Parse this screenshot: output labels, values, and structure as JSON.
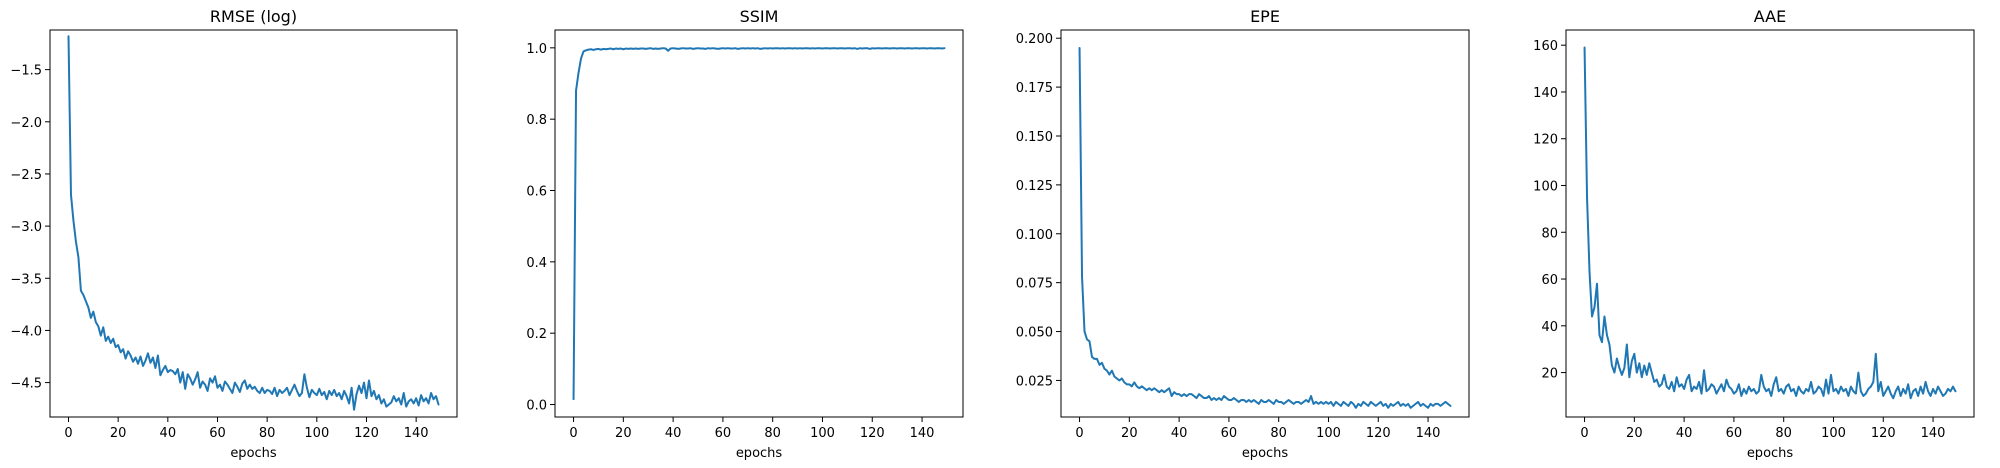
{
  "figure": {
    "line_color": "#1f77b4",
    "axes_color": "#000000",
    "background": "#ffffff"
  },
  "chart_data": [
    {
      "type": "line",
      "title": "RMSE (log)",
      "xlabel": "epochs",
      "ylabel": "",
      "xlim": [
        -7.45,
        156.45
      ],
      "ylim": [
        -4.83,
        -1.12
      ],
      "xticks": [
        0,
        20,
        40,
        60,
        80,
        100,
        120,
        140
      ],
      "yticks": [
        -4.5,
        -4.0,
        -3.5,
        -3.0,
        -2.5,
        -2.0,
        -1.5
      ],
      "ytick_labels": [
        "−4.5",
        "−4.0",
        "−3.5",
        "−3.0",
        "−2.5",
        "−2.0",
        "−1.5"
      ],
      "grid": false,
      "series": [
        {
          "values": [
            -1.18,
            -2.7,
            -2.95,
            -3.15,
            -3.3,
            -3.62,
            -3.66,
            -3.72,
            -3.78,
            -3.88,
            -3.82,
            -3.92,
            -3.96,
            -4.05,
            -3.97,
            -4.1,
            -4.06,
            -4.12,
            -4.08,
            -4.16,
            -4.14,
            -4.21,
            -4.18,
            -4.27,
            -4.2,
            -4.24,
            -4.3,
            -4.26,
            -4.32,
            -4.25,
            -4.34,
            -4.29,
            -4.22,
            -4.31,
            -4.26,
            -4.36,
            -4.24,
            -4.43,
            -4.38,
            -4.34,
            -4.4,
            -4.38,
            -4.39,
            -4.42,
            -4.37,
            -4.5,
            -4.4,
            -4.56,
            -4.42,
            -4.46,
            -4.52,
            -4.47,
            -4.4,
            -4.55,
            -4.49,
            -4.52,
            -4.58,
            -4.46,
            -4.5,
            -4.44,
            -4.55,
            -4.52,
            -4.58,
            -4.49,
            -4.52,
            -4.56,
            -4.6,
            -4.5,
            -4.54,
            -4.59,
            -4.51,
            -4.48,
            -4.56,
            -4.52,
            -4.56,
            -4.54,
            -4.58,
            -4.6,
            -4.55,
            -4.6,
            -4.57,
            -4.58,
            -4.61,
            -4.55,
            -4.63,
            -4.57,
            -4.6,
            -4.58,
            -4.55,
            -4.62,
            -4.57,
            -4.52,
            -4.58,
            -4.63,
            -4.6,
            -4.42,
            -4.55,
            -4.64,
            -4.57,
            -4.6,
            -4.62,
            -4.56,
            -4.62,
            -4.59,
            -4.66,
            -4.58,
            -4.62,
            -4.57,
            -4.63,
            -4.6,
            -4.66,
            -4.58,
            -4.63,
            -4.7,
            -4.55,
            -4.76,
            -4.61,
            -4.53,
            -4.6,
            -4.5,
            -4.65,
            -4.48,
            -4.63,
            -4.58,
            -4.66,
            -4.62,
            -4.7,
            -4.66,
            -4.73,
            -4.71,
            -4.69,
            -4.63,
            -4.68,
            -4.65,
            -4.71,
            -4.6,
            -4.73,
            -4.68,
            -4.66,
            -4.7,
            -4.65,
            -4.72,
            -4.62,
            -4.68,
            -4.65,
            -4.7,
            -4.6,
            -4.66,
            -4.63,
            -4.71
          ]
        }
      ]
    },
    {
      "type": "line",
      "title": "SSIM",
      "xlabel": "epochs",
      "ylabel": "",
      "xlim": [
        -7.45,
        156.45
      ],
      "ylim": [
        -0.035,
        1.05
      ],
      "xticks": [
        0,
        20,
        40,
        60,
        80,
        100,
        120,
        140
      ],
      "yticks": [
        0.0,
        0.2,
        0.4,
        0.6,
        0.8,
        1.0
      ],
      "ytick_labels": [
        "0.0",
        "0.2",
        "0.4",
        "0.6",
        "0.8",
        "1.0"
      ],
      "grid": false,
      "series": [
        {
          "values": [
            0.015,
            0.88,
            0.93,
            0.97,
            0.99,
            0.993,
            0.995,
            0.996,
            0.994,
            0.996,
            0.997,
            0.995,
            0.997,
            0.996,
            0.997,
            0.998,
            0.996,
            0.998,
            0.997,
            0.998,
            0.996,
            0.998,
            0.997,
            0.998,
            0.997,
            0.998,
            0.997,
            0.998,
            0.998,
            0.997,
            0.998,
            0.999,
            0.997,
            0.998,
            0.997,
            0.998,
            0.999,
            0.998,
            0.992,
            0.998,
            0.999,
            0.998,
            0.997,
            0.998,
            0.999,
            0.998,
            0.998,
            0.999,
            0.997,
            0.998,
            0.999,
            0.998,
            0.998,
            0.997,
            0.999,
            0.998,
            0.999,
            0.998,
            0.997,
            0.998,
            0.999,
            0.998,
            0.999,
            0.998,
            0.998,
            0.999,
            0.997,
            0.998,
            0.999,
            0.998,
            0.999,
            0.998,
            0.999,
            0.998,
            0.999,
            0.997,
            0.998,
            0.999,
            0.998,
            0.999,
            0.998,
            0.999,
            0.999,
            0.998,
            0.999,
            0.998,
            0.999,
            0.999,
            0.998,
            0.999,
            0.998,
            0.999,
            0.998,
            0.999,
            0.999,
            0.998,
            0.999,
            0.998,
            0.999,
            0.999,
            0.998,
            0.999,
            0.999,
            0.998,
            0.999,
            0.999,
            0.998,
            0.999,
            0.999,
            0.998,
            0.999,
            0.999,
            0.998,
            0.999,
            0.997,
            0.999,
            0.998,
            0.999,
            0.999,
            0.997,
            0.999,
            0.998,
            0.999,
            0.999,
            0.998,
            0.999,
            0.999,
            0.998,
            0.999,
            0.999,
            0.998,
            0.999,
            0.999,
            0.998,
            0.999,
            0.999,
            0.998,
            0.999,
            0.999,
            0.998,
            0.999,
            0.999,
            0.998,
            0.999,
            0.999,
            0.998,
            0.999,
            0.999,
            0.998,
            0.999
          ]
        }
      ]
    },
    {
      "type": "line",
      "title": "EPE",
      "xlabel": "epochs",
      "ylabel": "",
      "xlim": [
        -7.45,
        156.45
      ],
      "ylim": [
        0.0063,
        0.2042
      ],
      "xticks": [
        0,
        20,
        40,
        60,
        80,
        100,
        120,
        140
      ],
      "yticks": [
        0.025,
        0.05,
        0.075,
        0.1,
        0.125,
        0.15,
        0.175,
        0.2
      ],
      "ytick_labels": [
        "0.025",
        "0.050",
        "0.075",
        "0.100",
        "0.125",
        "0.150",
        "0.175",
        "0.200"
      ],
      "grid": false,
      "series": [
        {
          "values": [
            0.195,
            0.078,
            0.05,
            0.046,
            0.045,
            0.037,
            0.036,
            0.036,
            0.033,
            0.034,
            0.031,
            0.03,
            0.028,
            0.03,
            0.027,
            0.026,
            0.025,
            0.026,
            0.024,
            0.023,
            0.023,
            0.022,
            0.024,
            0.022,
            0.021,
            0.022,
            0.021,
            0.02,
            0.021,
            0.02,
            0.021,
            0.02,
            0.019,
            0.02,
            0.019,
            0.02,
            0.021,
            0.017,
            0.019,
            0.018,
            0.018,
            0.017,
            0.018,
            0.017,
            0.018,
            0.018,
            0.017,
            0.016,
            0.018,
            0.017,
            0.016,
            0.016,
            0.017,
            0.015,
            0.016,
            0.015,
            0.016,
            0.015,
            0.017,
            0.016,
            0.015,
            0.015,
            0.016,
            0.015,
            0.014,
            0.015,
            0.015,
            0.014,
            0.015,
            0.014,
            0.015,
            0.014,
            0.013,
            0.015,
            0.014,
            0.014,
            0.015,
            0.014,
            0.013,
            0.015,
            0.014,
            0.014,
            0.013,
            0.014,
            0.015,
            0.014,
            0.013,
            0.014,
            0.014,
            0.013,
            0.014,
            0.015,
            0.014,
            0.017,
            0.013,
            0.014,
            0.013,
            0.014,
            0.013,
            0.014,
            0.013,
            0.014,
            0.012,
            0.014,
            0.013,
            0.012,
            0.014,
            0.013,
            0.012,
            0.014,
            0.013,
            0.011,
            0.013,
            0.012,
            0.014,
            0.013,
            0.012,
            0.014,
            0.013,
            0.012,
            0.013,
            0.014,
            0.012,
            0.013,
            0.011,
            0.013,
            0.012,
            0.013,
            0.014,
            0.012,
            0.013,
            0.012,
            0.013,
            0.011,
            0.012,
            0.013,
            0.014,
            0.012,
            0.013,
            0.012,
            0.011,
            0.013,
            0.012,
            0.013,
            0.013,
            0.012,
            0.013,
            0.014,
            0.013,
            0.012
          ]
        }
      ]
    },
    {
      "type": "line",
      "title": "AAE",
      "xlabel": "epochs",
      "ylabel": "",
      "xlim": [
        -7.45,
        156.45
      ],
      "ylim": [
        1.0,
        166.5
      ],
      "xticks": [
        0,
        20,
        40,
        60,
        80,
        100,
        120,
        140
      ],
      "yticks": [
        20,
        40,
        60,
        80,
        100,
        120,
        140,
        160
      ],
      "ytick_labels": [
        "20",
        "40",
        "60",
        "80",
        "100",
        "120",
        "140",
        "160"
      ],
      "grid": false,
      "series": [
        {
          "values": [
            159,
            95,
            63,
            44,
            48,
            58,
            36,
            33,
            44,
            36,
            32,
            23,
            20,
            26,
            22,
            19,
            22,
            32,
            18,
            25,
            28,
            20,
            24,
            18,
            23,
            19,
            24,
            20,
            16,
            17,
            14,
            15,
            19,
            14,
            13,
            16,
            12,
            18,
            14,
            15,
            13,
            17,
            19,
            12,
            14,
            13,
            16,
            11,
            21,
            12,
            13,
            15,
            14,
            11,
            13,
            15,
            12,
            17,
            14,
            13,
            11,
            12,
            15,
            10,
            13,
            11,
            14,
            12,
            13,
            11,
            12,
            19,
            14,
            12,
            13,
            10,
            15,
            18,
            12,
            13,
            11,
            14,
            15,
            12,
            13,
            10,
            14,
            12,
            11,
            13,
            12,
            16,
            11,
            12,
            14,
            13,
            10,
            17,
            11,
            19,
            12,
            13,
            11,
            14,
            12,
            13,
            10,
            14,
            12,
            11,
            20,
            12,
            10,
            11,
            13,
            14,
            16,
            28,
            12,
            16,
            10,
            12,
            14,
            11,
            9,
            12,
            14,
            10,
            13,
            11,
            15,
            9,
            12,
            13,
            10,
            14,
            11,
            16,
            12,
            10,
            13,
            11,
            14,
            12,
            10,
            11,
            13,
            12,
            14,
            12
          ]
        }
      ]
    }
  ]
}
